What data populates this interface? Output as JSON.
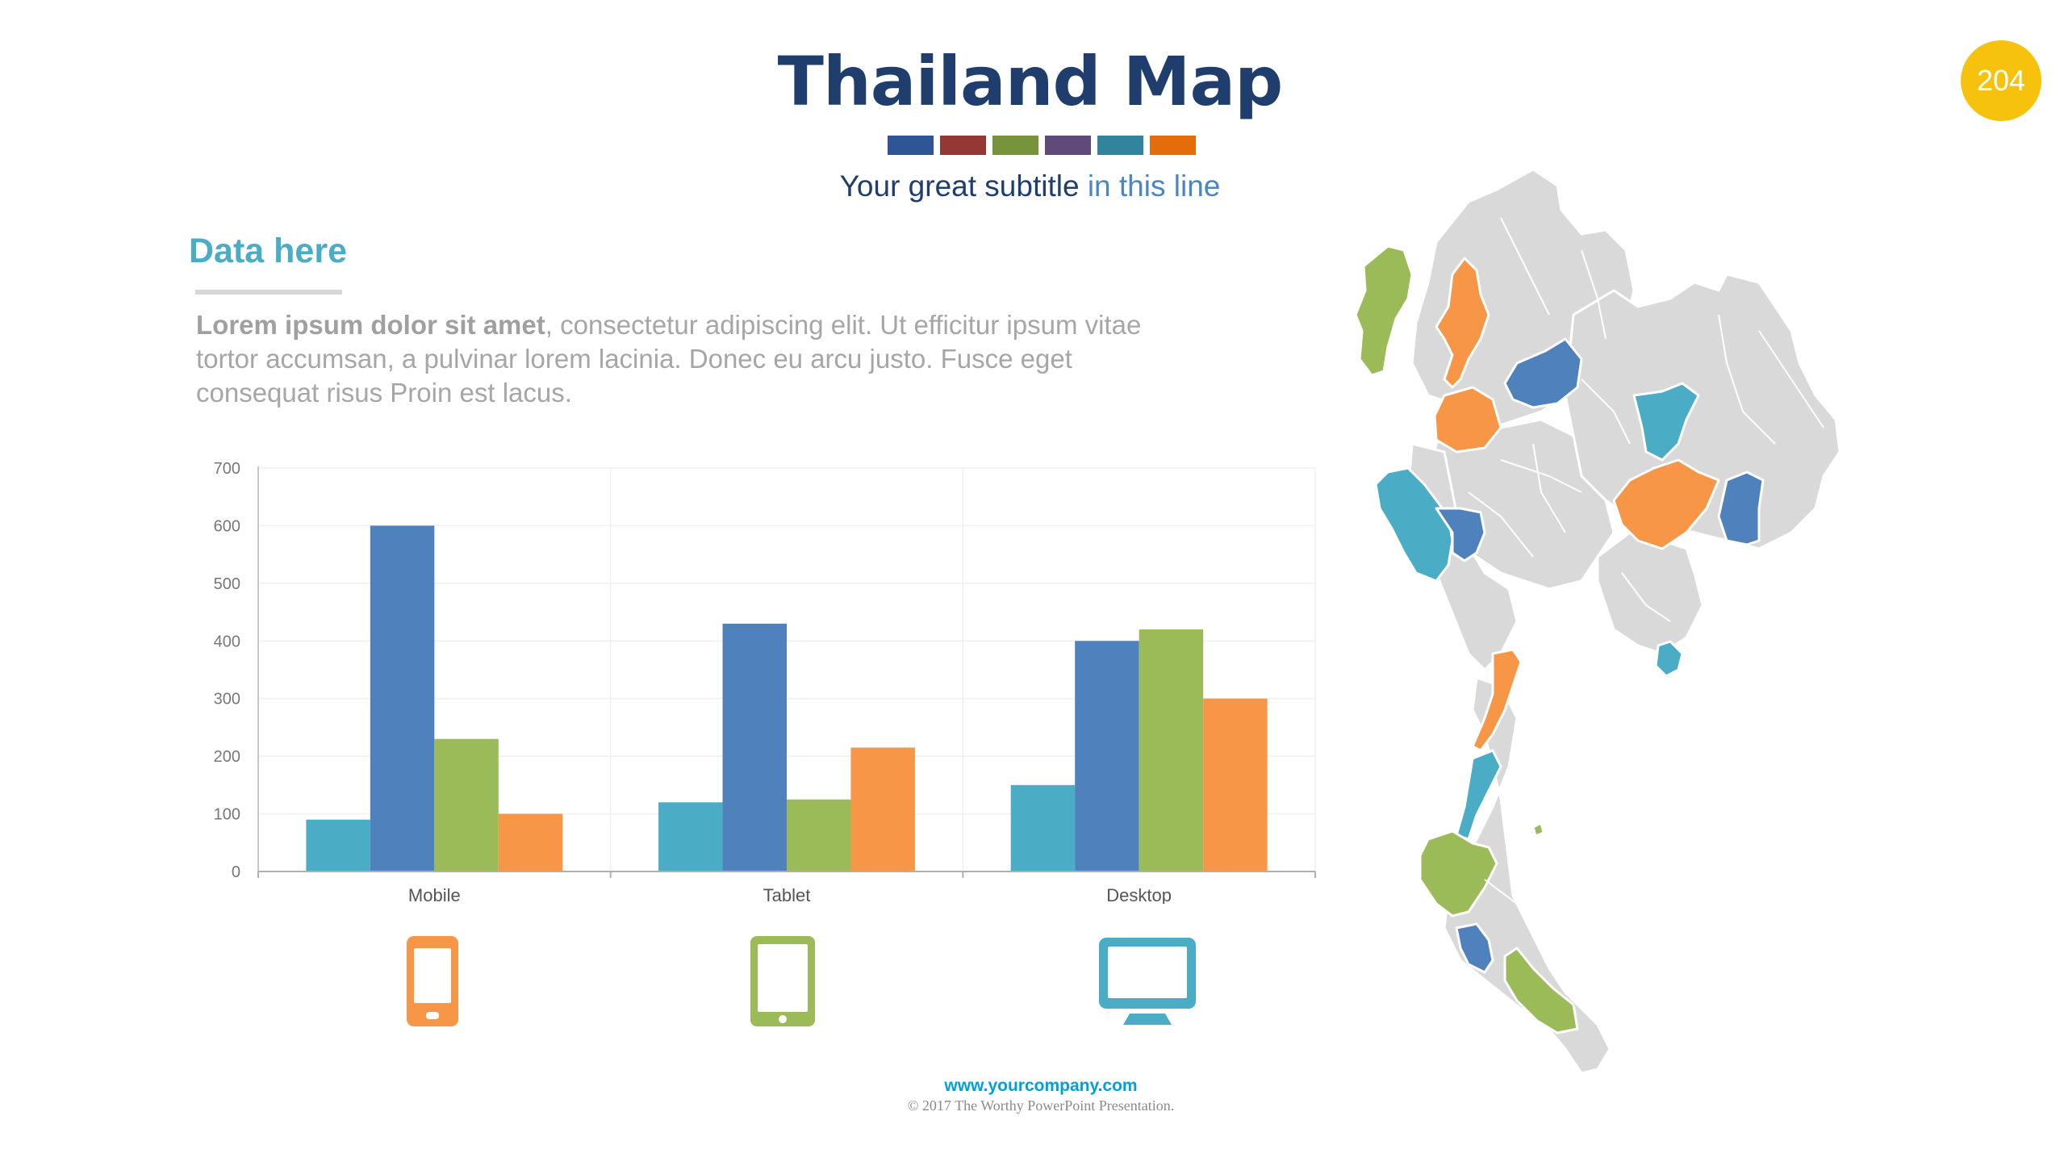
{
  "header": {
    "title": "Thailand Map",
    "subtitle_main": "Your great subtitle",
    "subtitle_accent": "in this line",
    "page_number": "204",
    "swatch_colors": [
      "#2f5597",
      "#953735",
      "#77933c",
      "#604a7b",
      "#31849b",
      "#e46c0a"
    ]
  },
  "section": {
    "title": "Data here",
    "body_bold": "Lorem ipsum dolor sit amet",
    "body_rest": ", consectetur adipiscing elit. Ut efficitur ipsum vitae tortor accumsan, a pulvinar lorem lacinia. Donec eu arcu justo. Fusce eget consequat risus Proin est lacus."
  },
  "chart_data": {
    "type": "bar",
    "categories": [
      "Mobile",
      "Tablet",
      "Desktop"
    ],
    "series": [
      {
        "values": [
          90,
          120,
          150
        ],
        "color": "#4bacc6"
      },
      {
        "values": [
          600,
          430,
          400
        ],
        "color": "#4f81bd"
      },
      {
        "values": [
          230,
          125,
          420
        ],
        "color": "#9bbb59"
      },
      {
        "values": [
          100,
          215,
          300
        ],
        "color": "#f79646"
      }
    ],
    "y_ticks": [
      0,
      100,
      200,
      300,
      400,
      500,
      600,
      700
    ],
    "ylim": [
      0,
      700
    ],
    "grid": true,
    "legend": "none"
  },
  "devices": [
    {
      "icon": "mobile-phone-icon",
      "color": "#f79646"
    },
    {
      "icon": "tablet-icon",
      "color": "#9bbb59"
    },
    {
      "icon": "desktop-monitor-icon",
      "color": "#4bacc6"
    }
  ],
  "map": {
    "name": "Thailand province map",
    "base_color": "#d9d9d9",
    "highlight_colors": [
      "#9bbb59",
      "#f79646",
      "#4f81bd",
      "#4bacc6"
    ]
  },
  "footer": {
    "url": "www.yourcompany.com",
    "copyright": "© 2017 The Worthy PowerPoint Presentation."
  }
}
